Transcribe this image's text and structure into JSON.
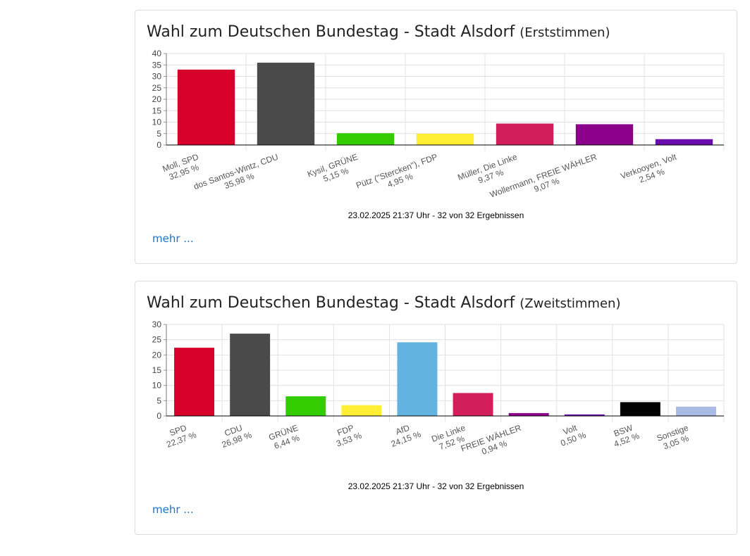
{
  "charts": [
    {
      "title": "Wahl zum Deutschen Bundestag - Stadt Alsdorf",
      "subtitle": "(Erststimmen)",
      "footnote": "23.02.2025 21:37 Uhr - 32 von 32 Ergebnissen",
      "more_label": "mehr ...",
      "chart_data": {
        "type": "bar",
        "ylim": [
          0,
          40
        ],
        "yticks": [
          0,
          5,
          10,
          15,
          20,
          25,
          30,
          35,
          40
        ],
        "grid": true,
        "categories": [
          "Moll, SPD",
          "dos Santos-Wintz, CDU",
          "Kysil, GRÜNE",
          "Pütz (\"Stercken\"), FDP",
          "Müller, Die Linke",
          "Wollermann, FREIE WÄHLER",
          "Verkooyen, Volt"
        ],
        "value_labels": [
          "32,95 %",
          "35,98 %",
          "5,15 %",
          "4,95 %",
          "9,37 %",
          "9,07 %",
          "2,54 %"
        ],
        "values": [
          32.95,
          35.98,
          5.15,
          4.95,
          9.37,
          9.07,
          2.54
        ],
        "colors": [
          "#d7002b",
          "#4a4a4a",
          "#33cc00",
          "#ffee33",
          "#d21e5a",
          "#8b008b",
          "#6a0dad"
        ]
      }
    },
    {
      "title": "Wahl zum Deutschen Bundestag - Stadt Alsdorf",
      "subtitle": "(Zweitstimmen)",
      "footnote": "23.02.2025 21:37 Uhr - 32 von 32 Ergebnissen",
      "more_label": "mehr ...",
      "chart_data": {
        "type": "bar",
        "ylim": [
          0,
          30
        ],
        "yticks": [
          0,
          5,
          10,
          15,
          20,
          25,
          30
        ],
        "grid": true,
        "categories": [
          "SPD",
          "CDU",
          "GRÜNE",
          "FDP",
          "AfD",
          "Die Linke",
          "FREIE WÄHLER",
          "Volt",
          "BSW",
          "Sonstige"
        ],
        "value_labels": [
          "22,37 %",
          "26,98 %",
          "6,44 %",
          "3,53 %",
          "24,15 %",
          "7,52 %",
          "0,94 %",
          "0,50 %",
          "4,52 %",
          "3,05 %"
        ],
        "values": [
          22.37,
          26.98,
          6.44,
          3.53,
          24.15,
          7.52,
          0.94,
          0.5,
          4.52,
          3.05
        ],
        "colors": [
          "#d7002b",
          "#4a4a4a",
          "#33cc00",
          "#ffee33",
          "#63b3e0",
          "#d21e5a",
          "#8b008b",
          "#6a0dad",
          "#000000",
          "#a8bce6"
        ]
      }
    }
  ]
}
